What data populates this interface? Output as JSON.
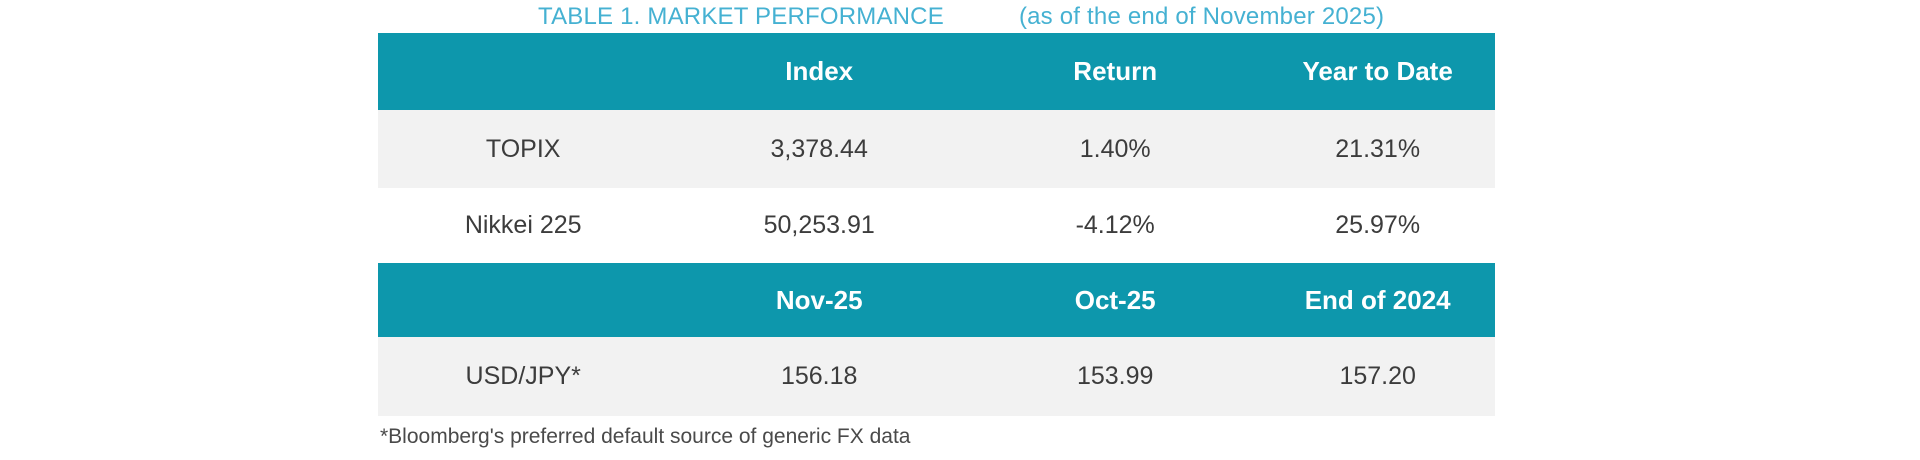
{
  "page": {
    "title_main": "TABLE 1. MARKET PERFORMANCE",
    "title_asof": "(as of the end of November 2025)",
    "footnote": "*Bloomberg's preferred default source of generic FX data"
  },
  "colors": {
    "header_teal": "#0d97ac",
    "title_blue": "#45b1d2",
    "row_gray": "#f2f2f2",
    "header_text": "#ffffff",
    "body_text": "#3c3c3c",
    "footnote_text": "#4a4a4a"
  },
  "index_table": {
    "headers": {
      "c0": "",
      "c1": "Index",
      "c2": "Return",
      "c3": "Year to Date"
    },
    "rows": [
      {
        "label": "TOPIX",
        "index": "3,378.44",
        "return": "1.40%",
        "ytd": "21.31%"
      },
      {
        "label": "Nikkei 225",
        "index": "50,253.91",
        "return": "-4.12%",
        "ytd": "25.97%"
      }
    ]
  },
  "fx_table": {
    "headers": {
      "c0": "",
      "c1": "Nov-25",
      "c2": "Oct-25",
      "c3": "End of 2024"
    },
    "rows": [
      {
        "label": "USD/JPY*",
        "nov": "156.18",
        "oct": "153.99",
        "end2024": "157.20"
      }
    ]
  }
}
